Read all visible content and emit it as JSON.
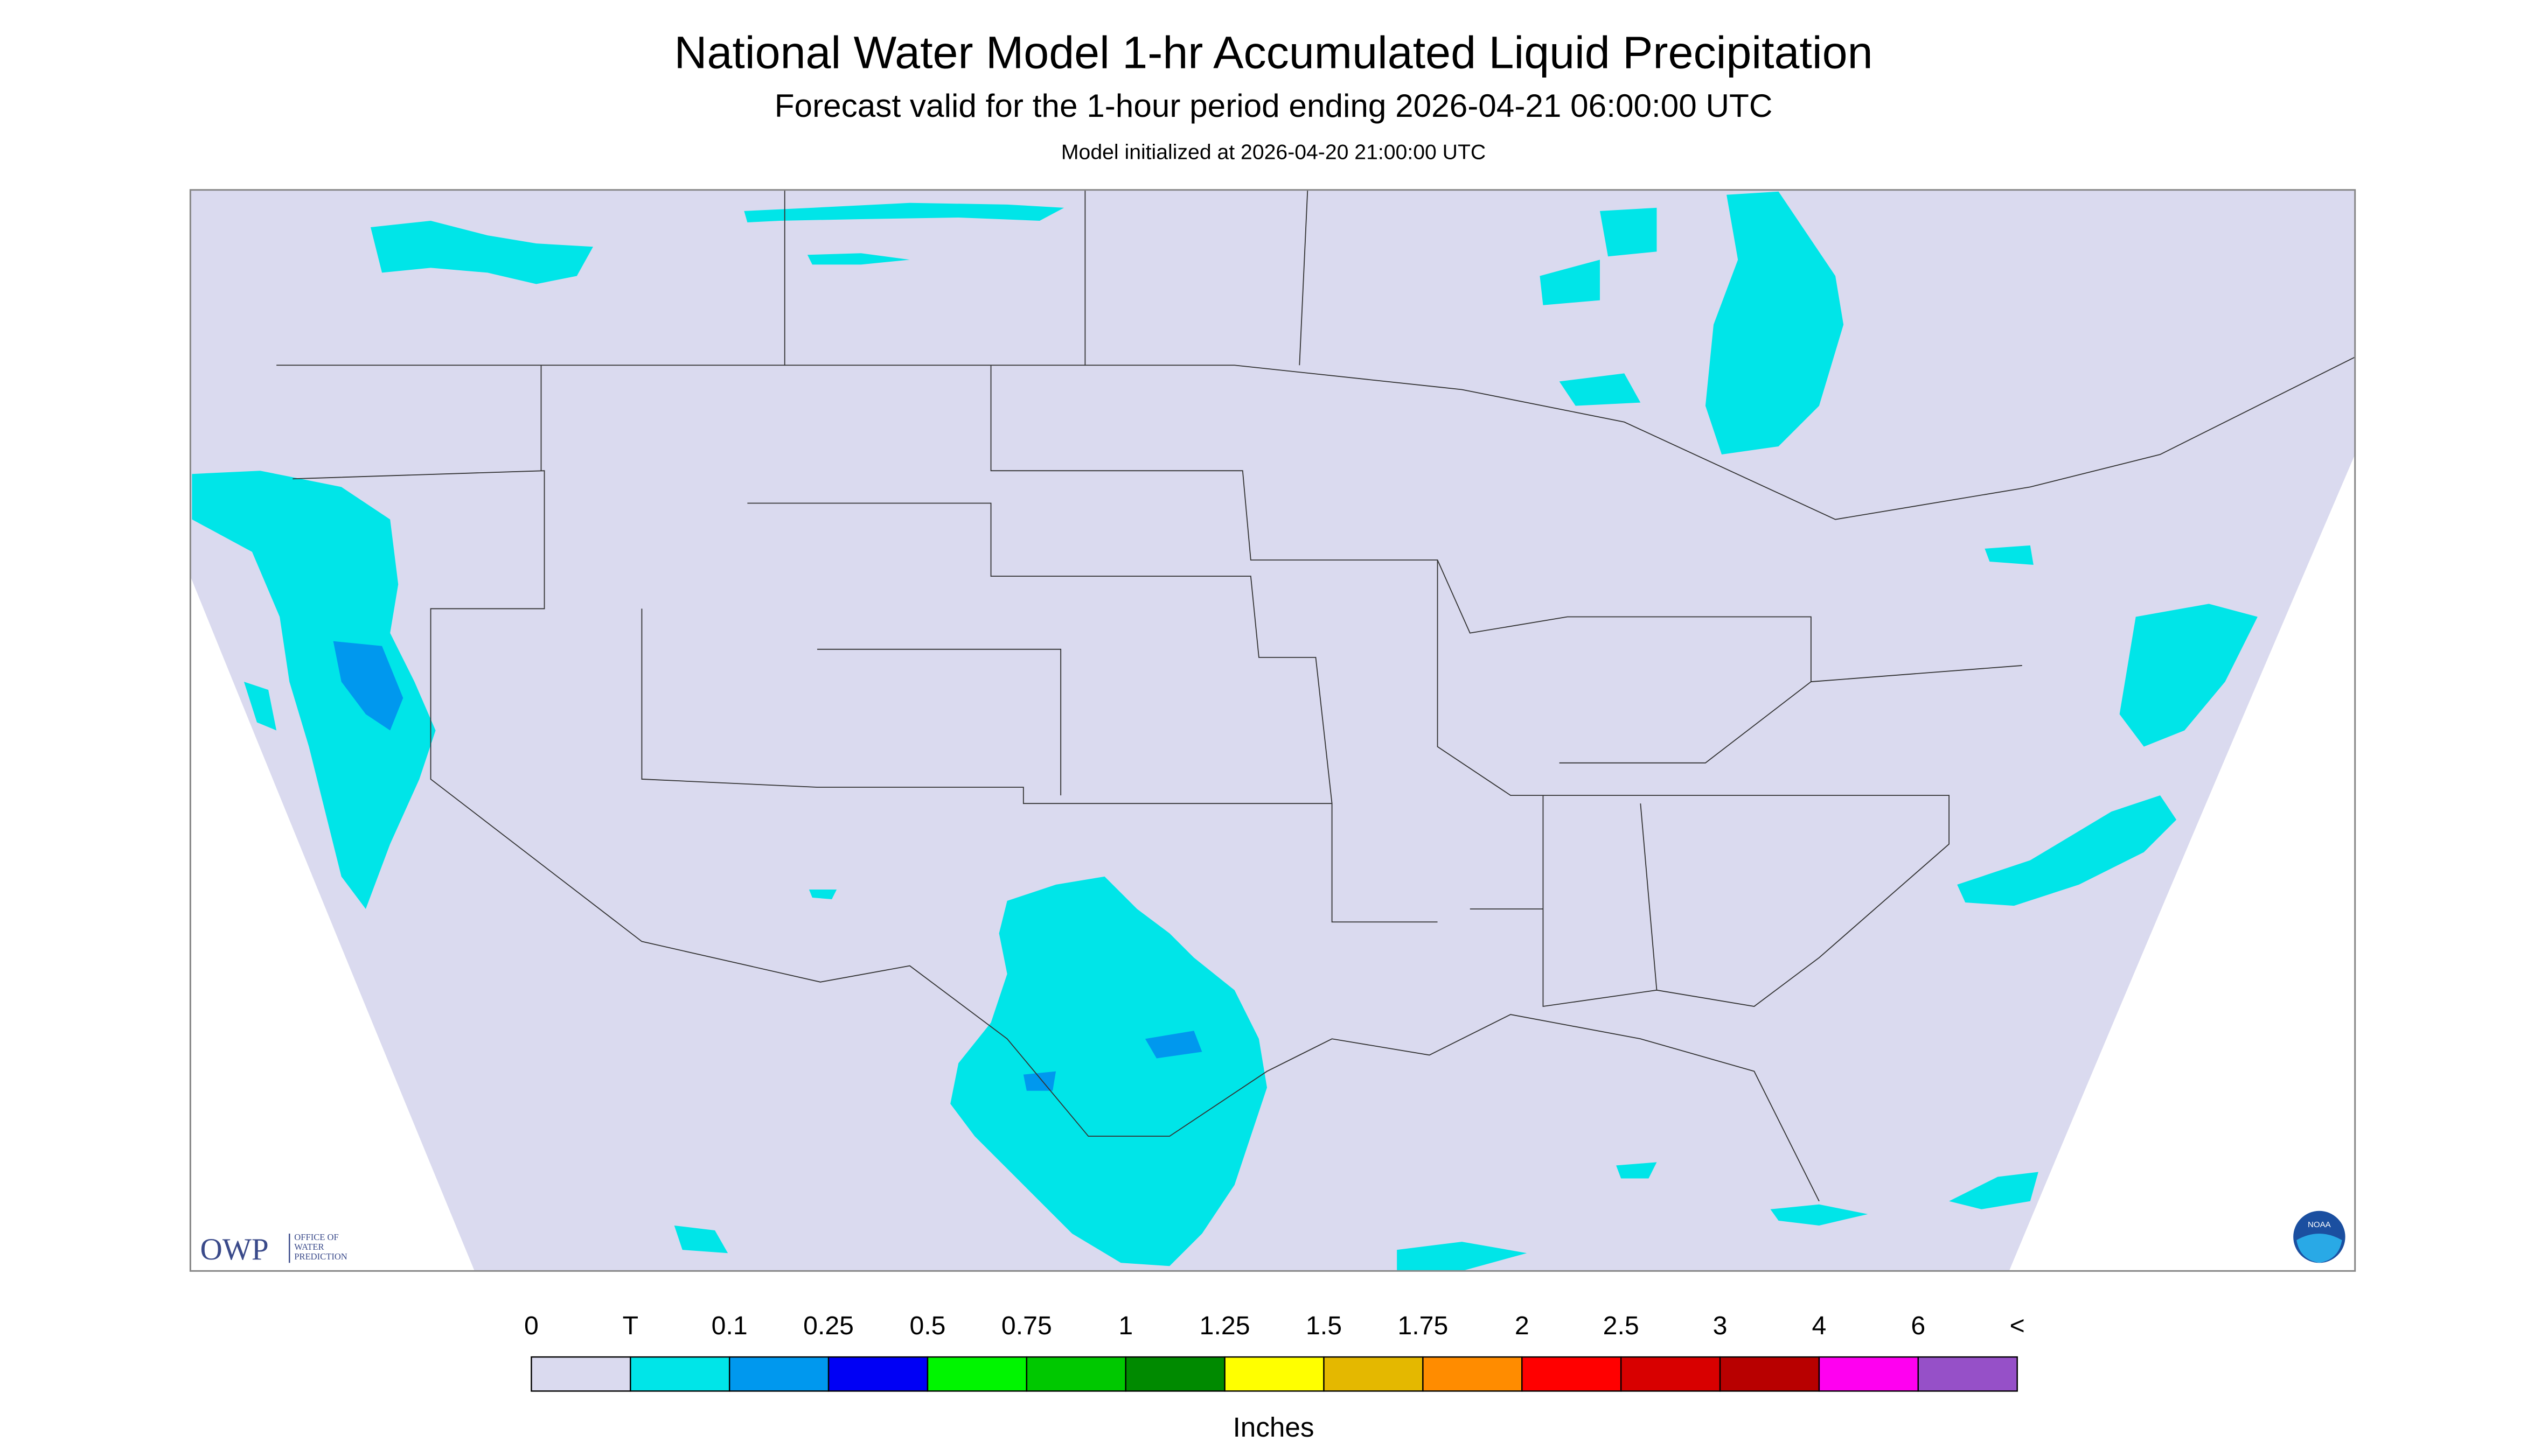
{
  "header": {
    "title": "National Water Model 1-hr Accumulated Liquid Precipitation",
    "subtitle": "Forecast valid for the 1-hour period ending 2026-04-21 06:00:00 UTC",
    "initialized": "Model initialized at 2026-04-20 21:00:00 UTC"
  },
  "logo": {
    "abbr": "OWP",
    "line1": "OFFICE OF",
    "line2": "WATER",
    "line3": "PREDICTION",
    "badge": "NOAA"
  },
  "legend": {
    "labels": [
      "0",
      "T",
      "0.1",
      "0.25",
      "0.5",
      "0.75",
      "1",
      "1.25",
      "1.5",
      "1.75",
      "2",
      "2.5",
      "3",
      "4",
      "6",
      "<"
    ],
    "colors": [
      "#dadaef",
      "#00e5e8",
      "#0098ee",
      "#0000f5",
      "#00f500",
      "#00c800",
      "#008a00",
      "#ffff00",
      "#e4b800",
      "#ff8c00",
      "#ff0000",
      "#d80000",
      "#b80000",
      "#ff00f0",
      "#9650c8"
    ],
    "unit": "Inches"
  }
}
